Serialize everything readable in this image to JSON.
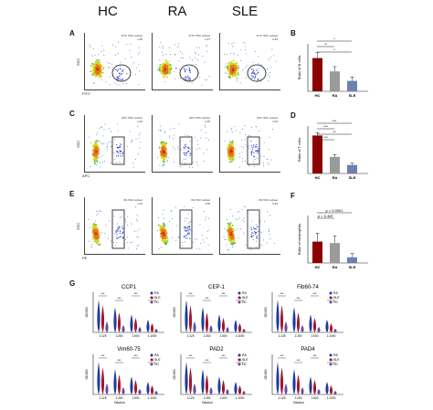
{
  "columns": [
    "HC",
    "RA",
    "SLE"
  ],
  "panel_letters": [
    "A",
    "B",
    "C",
    "D",
    "E",
    "F",
    "G"
  ],
  "flow_rows": [
    {
      "ylabel": "SSC",
      "xlabel": "FITC",
      "gates": [
        "FITC SSC subset\n1.95",
        "FITC SSC subset\n1.27",
        "FITC SSC subset\n0.46"
      ]
    },
    {
      "ylabel": "SSC",
      "xlabel": "APC",
      "gates": [
        "APC SSC subset\n1.33",
        "APC SSC subset\n1.06",
        "APC SSC subset\n1.04"
      ]
    },
    {
      "ylabel": "SSC",
      "xlabel": "PE",
      "gates": [
        "PE SSC subset\n1.23",
        "PE SSC subset\n1.08",
        "PE SSC subset\n0.30"
      ]
    }
  ],
  "bar_panels": [
    {
      "ylabel": "Ratio of B cells",
      "categories": [
        "HC",
        "RA",
        "SLE"
      ],
      "values": [
        0.7,
        0.42,
        0.22
      ],
      "errors": [
        0.12,
        0.1,
        0.08
      ],
      "colors": [
        "#8b0000",
        "#9a9a9a",
        "#6f7fb0"
      ],
      "sig": [
        "*",
        "**",
        "*"
      ]
    },
    {
      "ylabel": "Ratio of T cells",
      "categories": [
        "HC",
        "RA",
        "SLE"
      ],
      "values": [
        0.8,
        0.35,
        0.18
      ],
      "errors": [
        0.06,
        0.05,
        0.04
      ],
      "colors": [
        "#8b0000",
        "#9a9a9a",
        "#6f7fb0"
      ],
      "sig": [
        "***",
        "***",
        "**",
        "***"
      ]
    },
    {
      "ylabel": "Ratio of neutrophils",
      "categories": [
        "HC",
        "RA",
        "SLE"
      ],
      "values": [
        0.45,
        0.42,
        0.12
      ],
      "errors": [
        0.18,
        0.15,
        0.08
      ],
      "colors": [
        "#8b0000",
        "#9a9a9a",
        "#6f7fb0"
      ],
      "sig": [
        "p < 0.0001",
        "p = 0.487"
      ]
    }
  ],
  "violin_panels": [
    {
      "title": "CCP1",
      "ylabel": "OD450",
      "dilutions": [
        "1:125",
        "1:250",
        "1:500",
        "1:1000"
      ],
      "legend": [
        "RA",
        "SLE",
        "HC"
      ]
    },
    {
      "title": "CEP-1",
      "ylabel": "OD450",
      "dilutions": [
        "1:125",
        "1:250",
        "1:500",
        "1:1000"
      ],
      "legend": [
        "RA",
        "SLE",
        "HC"
      ]
    },
    {
      "title": "Fib60-74",
      "ylabel": "OD450",
      "dilutions": [
        "1:125",
        "1:250",
        "1:500",
        "1:1000"
      ],
      "legend": [
        "RA",
        "SLE",
        "HC"
      ]
    },
    {
      "title": "Vim60-75",
      "ylabel": "OD450",
      "dilutions": [
        "1:125",
        "1:250",
        "1:500",
        "1:1000"
      ],
      "legend": [
        "RA",
        "SLE",
        "HC"
      ],
      "xlabel": "Dilution"
    },
    {
      "title": "PAD2",
      "ylabel": "OD450",
      "dilutions": [
        "1:125",
        "1:250",
        "1:500",
        "1:1000"
      ],
      "legend": [
        "RA",
        "SLE",
        "HC"
      ],
      "xlabel": "Dilution"
    },
    {
      "title": "PAD4",
      "ylabel": "OD450",
      "dilutions": [
        "1:125",
        "1:250",
        "1:500",
        "1:1000"
      ],
      "legend": [
        "RA",
        "SLE",
        "HC"
      ],
      "xlabel": "Dilution"
    }
  ],
  "violin_colors": {
    "RA": "#1f3b9e",
    "SLE": "#a0182b",
    "HC": "#6a4aa0"
  }
}
